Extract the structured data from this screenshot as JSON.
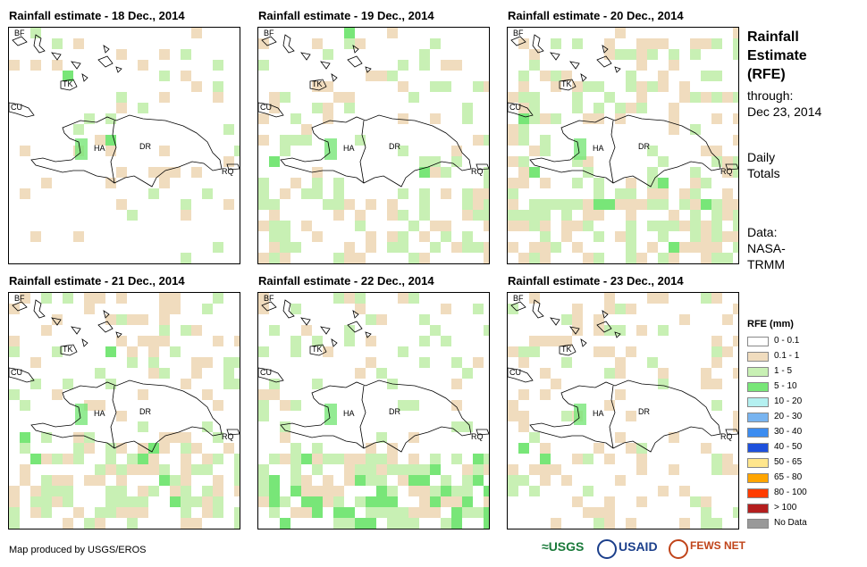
{
  "panels": [
    {
      "title": "Rainfall estimate - 18 Dec., 2014",
      "seed": 11,
      "density": 0.12,
      "greenBias": 0.25,
      "moreSouth": 0
    },
    {
      "title": "Rainfall estimate - 19 Dec., 2014",
      "seed": 23,
      "density": 0.22,
      "greenBias": 0.55,
      "moreSouth": 1
    },
    {
      "title": "Rainfall estimate - 20 Dec., 2014",
      "seed": 37,
      "density": 0.35,
      "greenBias": 0.5,
      "moreSouth": 1
    },
    {
      "title": "Rainfall estimate - 21 Dec., 2014",
      "seed": 41,
      "density": 0.33,
      "greenBias": 0.45,
      "moreSouth": 1
    },
    {
      "title": "Rainfall estimate - 22 Dec., 2014",
      "seed": 53,
      "density": 0.2,
      "greenBias": 0.6,
      "moreSouth": 2
    },
    {
      "title": "Rainfall estimate - 23 Dec., 2014",
      "seed": 67,
      "density": 0.22,
      "greenBias": 0.2,
      "moreSouth": 0
    }
  ],
  "map_labels": {
    "bf": "BF",
    "cu": "CU",
    "ha": "HA",
    "dr": "DR",
    "rq": "RQ",
    "tk": "TK"
  },
  "side": {
    "title_lines": [
      "Rainfall",
      "Estimate",
      "(RFE)"
    ],
    "through": "through:",
    "date": "Dec 23, 2014",
    "totals_lines": [
      "Daily",
      "Totals"
    ],
    "data_lines": [
      "Data:",
      "NASA-",
      "TRMM"
    ]
  },
  "legend": {
    "title": "RFE (mm)",
    "items": [
      {
        "label": "0 - 0.1",
        "color": "#ffffff"
      },
      {
        "label": "0.1 - 1",
        "color": "#f0dcbe"
      },
      {
        "label": "1 - 5",
        "color": "#c8f0b4"
      },
      {
        "label": "5 - 10",
        "color": "#78e678"
      },
      {
        "label": "10 - 20",
        "color": "#b4f0f0"
      },
      {
        "label": "20 - 30",
        "color": "#78b4f0"
      },
      {
        "label": "30 - 40",
        "color": "#3c8cf0"
      },
      {
        "label": "40 - 50",
        "color": "#1e50dc"
      },
      {
        "label": "50 - 65",
        "color": "#ffe68c"
      },
      {
        "label": "65 - 80",
        "color": "#ffa500"
      },
      {
        "label": "80 - 100",
        "color": "#ff3c00"
      },
      {
        "label": "> 100",
        "color": "#b41e1e"
      },
      {
        "label": "No Data",
        "color": "#999999"
      }
    ]
  },
  "credit": "Map produced by USGS/EROS",
  "logos": {
    "usgs": "USGS",
    "usaid": "USAID",
    "fewsnet": "FEWS NET"
  }
}
